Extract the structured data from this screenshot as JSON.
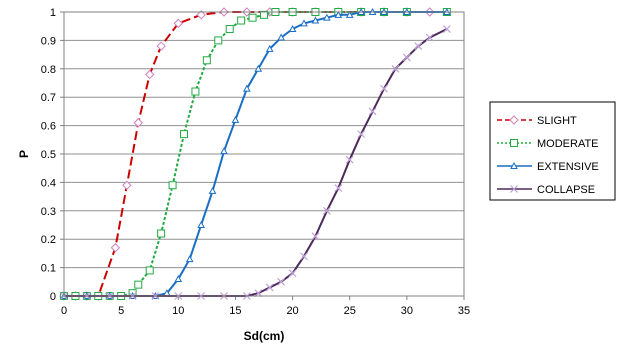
{
  "chart_data": {
    "type": "line",
    "xlabel": "Sd(cm)",
    "ylabel": "P",
    "xlim": [
      0,
      35
    ],
    "ylim": [
      0,
      1
    ],
    "xticks": [
      0,
      5,
      10,
      15,
      20,
      25,
      30,
      35
    ],
    "yticks": [
      0,
      0.1,
      0.2,
      0.3,
      0.4,
      0.5,
      0.6,
      0.7,
      0.8,
      0.9,
      1
    ],
    "grid": "horizontal",
    "legend_position": "right",
    "series": [
      {
        "name": "SLIGHT",
        "color": "#cc0000",
        "line_style": "dashed",
        "marker": "diamond-open",
        "x": [
          0,
          1,
          2,
          3,
          4.5,
          5.5,
          6.5,
          7.5,
          8.5,
          10,
          12,
          14,
          16,
          18,
          20,
          22,
          24,
          26,
          28,
          30,
          32
        ],
        "y": [
          0,
          0,
          0,
          0,
          0.17,
          0.39,
          0.61,
          0.78,
          0.88,
          0.96,
          0.99,
          1.0,
          1.0,
          1.0,
          1.0,
          1.0,
          1.0,
          1.0,
          1.0,
          1.0,
          1.0
        ]
      },
      {
        "name": "MODERATE",
        "color": "#22aa44",
        "line_style": "dotted",
        "marker": "square-open",
        "x": [
          0,
          1,
          2,
          3,
          4,
          5,
          6,
          6.5,
          7.5,
          8.5,
          9.5,
          10.5,
          11.5,
          12.5,
          13.5,
          14.5,
          15.5,
          16.5,
          17.5,
          18.5,
          20,
          22,
          24,
          26,
          28,
          30,
          33.5
        ],
        "y": [
          0,
          0,
          0,
          0,
          0,
          0,
          0.01,
          0.04,
          0.09,
          0.22,
          0.39,
          0.57,
          0.72,
          0.83,
          0.9,
          0.94,
          0.97,
          0.98,
          0.99,
          1.0,
          1.0,
          1.0,
          1.0,
          1.0,
          1.0,
          1.0,
          1.0
        ]
      },
      {
        "name": "EXTENSIVE",
        "color": "#1a6fc4",
        "line_style": "solid",
        "marker": "triangle",
        "x": [
          0,
          2,
          4,
          6,
          8,
          9,
          10,
          11,
          12,
          13,
          14,
          15,
          16,
          17,
          18,
          19,
          20,
          21,
          22,
          23,
          24,
          25,
          26,
          27,
          28,
          30,
          33.5
        ],
        "y": [
          0,
          0,
          0,
          0,
          0,
          0.01,
          0.06,
          0.13,
          0.25,
          0.37,
          0.51,
          0.62,
          0.73,
          0.8,
          0.87,
          0.91,
          0.94,
          0.96,
          0.97,
          0.98,
          0.99,
          0.99,
          1.0,
          1.0,
          1.0,
          1.0,
          1.0
        ]
      },
      {
        "name": "COLLAPSE",
        "color": "#4b2a5a",
        "line_style": "solid",
        "marker": "x",
        "x": [
          0,
          2,
          4,
          6,
          8,
          10,
          12,
          14,
          16,
          17,
          18,
          19,
          20,
          21,
          22,
          23,
          24,
          25,
          26,
          27,
          28,
          29,
          30,
          31,
          32,
          33.5
        ],
        "y": [
          0,
          0,
          0,
          0,
          0,
          0,
          0,
          0,
          0,
          0.01,
          0.03,
          0.05,
          0.08,
          0.14,
          0.21,
          0.3,
          0.38,
          0.48,
          0.57,
          0.65,
          0.73,
          0.8,
          0.84,
          0.88,
          0.91,
          0.94
        ]
      }
    ]
  }
}
